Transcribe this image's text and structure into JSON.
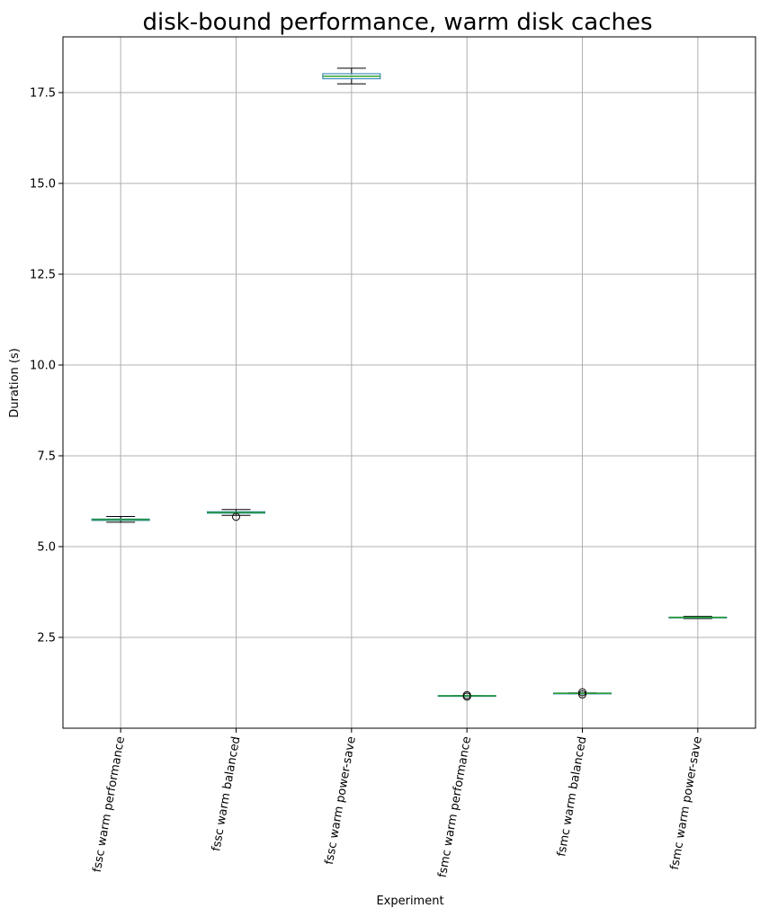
{
  "chart_data": {
    "type": "box",
    "title": "disk-bound performance, warm disk caches",
    "xlabel": "Experiment",
    "ylabel": "Duration (s)",
    "ylim": [
      0,
      19
    ],
    "yticks": [
      "2.5",
      "5.0",
      "7.5",
      "10.0",
      "12.5",
      "15.0",
      "17.5"
    ],
    "grid": true,
    "categories": [
      "fssc warm performance",
      "fssc warm balanced",
      "fssc warm power-save",
      "fsmc warm performance",
      "fsmc warm balanced",
      "fsmc warm power-save"
    ],
    "boxes": [
      {
        "whislo": 5.67,
        "q1": 5.72,
        "med": 5.74,
        "q3": 5.76,
        "whishi": 5.83,
        "fliers": []
      },
      {
        "whislo": 5.86,
        "q1": 5.92,
        "med": 5.94,
        "q3": 5.96,
        "whishi": 6.02,
        "fliers": [
          5.82
        ]
      },
      {
        "whislo": 17.74,
        "q1": 17.88,
        "med": 17.95,
        "q3": 18.02,
        "whishi": 18.17,
        "fliers": []
      },
      {
        "whislo": 0.88,
        "q1": 0.89,
        "med": 0.89,
        "q3": 0.9,
        "whishi": 0.9,
        "fliers": [
          0.87,
          0.91
        ]
      },
      {
        "whislo": 0.95,
        "q1": 0.96,
        "med": 0.96,
        "q3": 0.97,
        "whishi": 0.97,
        "fliers": [
          0.93,
          0.99
        ]
      },
      {
        "whislo": 3.02,
        "q1": 3.04,
        "med": 3.05,
        "q3": 3.06,
        "whishi": 3.08,
        "fliers": []
      }
    ],
    "colors": {
      "box": "#1f77b4",
      "median": "#2ca02c",
      "whisker": "#000000",
      "grid": "#b0b0b0",
      "flier": "#000000"
    }
  }
}
